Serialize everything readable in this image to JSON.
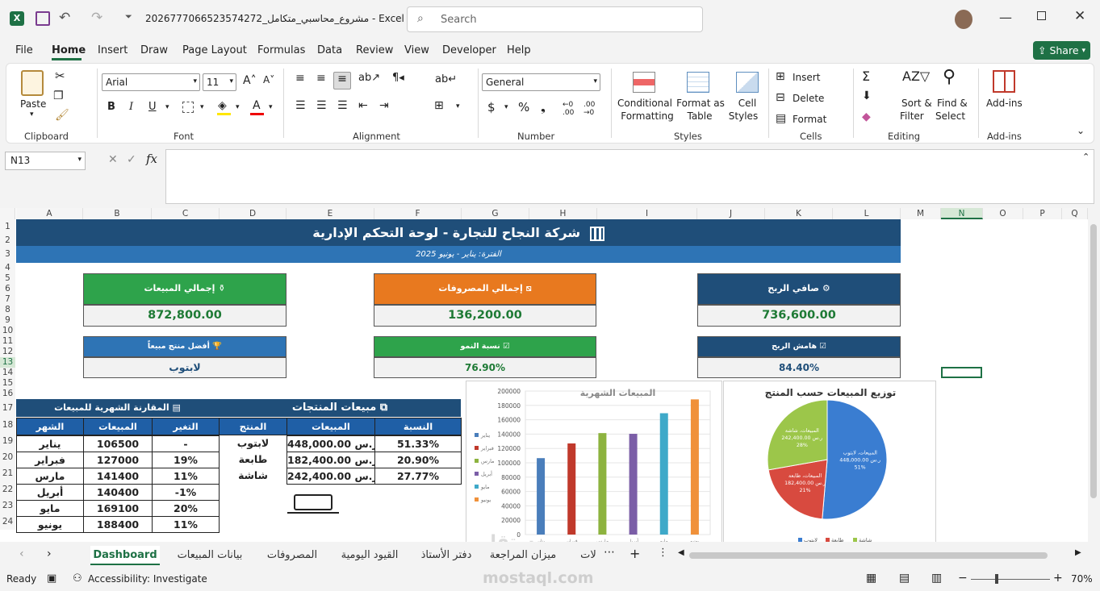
{
  "window": {
    "filename": "مشروع_محاسبي_متكامل_2026777066523574272  -  Excel",
    "search_placeholder": "Search"
  },
  "menu": [
    "File",
    "Home",
    "Insert",
    "Draw",
    "Page Layout",
    "Formulas",
    "Data",
    "Review",
    "View",
    "Developer",
    "Help"
  ],
  "share_label": "Share",
  "ribbon": {
    "clipboard": {
      "paste": "Paste",
      "label": "Clipboard"
    },
    "font": {
      "name": "Arial",
      "size": "11",
      "label": "Font"
    },
    "alignment": {
      "label": "Alignment"
    },
    "number": {
      "format": "General",
      "label": "Number"
    },
    "styles": {
      "conditional_1": "Conditional",
      "conditional_2": "Formatting",
      "format_table_1": "Format as",
      "format_table_2": "Table",
      "cell_styles_1": "Cell",
      "cell_styles_2": "Styles",
      "label": "Styles"
    },
    "cells": {
      "insert": "Insert",
      "delete": "Delete",
      "format": "Format",
      "label": "Cells"
    },
    "editing": {
      "sort_1": "Sort &",
      "sort_2": "Filter",
      "find_1": "Find &",
      "find_2": "Select",
      "label": "Editing"
    },
    "addins": {
      "button": "Add-ins",
      "label": "Add-ins"
    }
  },
  "formula_bar": {
    "name_box": "N13",
    "fx": "fx",
    "content": ""
  },
  "columns": [
    "A",
    "B",
    "C",
    "D",
    "E",
    "F",
    "G",
    "H",
    "I",
    "J",
    "K",
    "L",
    "M",
    "N",
    "O",
    "P",
    "Q"
  ],
  "rows": [
    "1",
    "2",
    "3",
    "4",
    "5",
    "6",
    "7",
    "8",
    "9",
    "10",
    "11",
    "12",
    "13",
    "14",
    "15",
    "16",
    "17",
    "18",
    "19",
    "20",
    "21",
    "22",
    "23",
    "24"
  ],
  "dashboard": {
    "title": "شركة النجاح للتجارة - لوحة التحكم الإدارية",
    "period": "الفترة: يناير - يونيو 2025",
    "kpis": [
      {
        "title": "إجمالي المبيعات",
        "value": "872,800.00",
        "color": "#2ea34b",
        "icon": "money-bag-icon"
      },
      {
        "title": "إجمالي المصروفات",
        "value": "136,200.00",
        "color": "#e8791f",
        "icon": "chart-down-icon"
      },
      {
        "title": "صافي الربح",
        "value": "736,600.00",
        "color": "#1f4e79",
        "icon": "gears-icon"
      }
    ],
    "kpis2": [
      {
        "title": "أفضل منتج مبيعاً",
        "value": "لابتوب",
        "color": "#2e74b5",
        "icon": "trophy-icon"
      },
      {
        "title": "نسبة النمو",
        "value": "76.90%",
        "color": "#2ea34b",
        "icon": "check-icon"
      },
      {
        "title": "هامش الربح",
        "value": "84.40%",
        "color": "#1f4e79",
        "icon": "check-icon"
      }
    ],
    "monthly_title": "المقارنة الشهرية للمبيعات",
    "monthly_headers": [
      "الشهر",
      "المبيعات",
      "التغير"
    ],
    "monthly_rows": [
      [
        "يناير",
        "106500",
        "-"
      ],
      [
        "فبراير",
        "127000",
        "19%"
      ],
      [
        "مارس",
        "141400",
        "11%"
      ],
      [
        "أبريل",
        "140400",
        "-1%"
      ],
      [
        "مايو",
        "169100",
        "20%"
      ],
      [
        "يونيو",
        "188400",
        "11%"
      ]
    ],
    "products_title": "مبيعات المنتجات",
    "products_headers": [
      "المنتج",
      "المبيعات",
      "النسبة"
    ],
    "products_rows": [
      [
        "لابتوب",
        "448,000.00 ر.س",
        "51.33%"
      ],
      [
        "طابعة",
        "182,400.00 ر.س",
        "20.90%"
      ],
      [
        "شاشة",
        "242,400.00 ر.س",
        "27.77%"
      ]
    ]
  },
  "chart_data": [
    {
      "type": "bar",
      "title": "المبيعات الشهرية",
      "categories": [
        "يناير",
        "فبراير",
        "مارس",
        "أبريل",
        "مايو",
        "يونيو"
      ],
      "values": [
        106500,
        127000,
        141400,
        140400,
        169100,
        188400
      ],
      "colors": [
        "#4a7ebb",
        "#c0392b",
        "#8db33f",
        "#7b5ea7",
        "#3fa9c9",
        "#f0913a"
      ],
      "ylim": [
        0,
        200000
      ],
      "yticks": [
        "200000",
        "180000",
        "160000",
        "140000",
        "120000",
        "100000",
        "80000",
        "60000",
        "40000",
        "20000",
        "0"
      ],
      "legend": "left"
    },
    {
      "type": "pie",
      "title": "توزيع المبيعات حسب المنتج",
      "slices": [
        {
          "name": "لابتوب",
          "value": 448000,
          "label": "المبيعات، لابتوب، 448,000.00 ر.س، 51%",
          "color": "#3a7dd1"
        },
        {
          "name": "طابعة",
          "value": 182400,
          "label": "المبيعات، طابعة، 182,400.00 ر.س، 21%",
          "color": "#d84a3f"
        },
        {
          "name": "شاشة",
          "value": 242400,
          "label": "المبيعات، شاشة، 242,400.00 ر.س، 28%",
          "color": "#9cc64a"
        }
      ],
      "legend": "bottom"
    }
  ],
  "sheet_tabs": [
    "Dashboard",
    "بيانات المبيعات",
    "المصروفات",
    "القيود اليومية",
    "دفتر الأستاذ",
    "ميزان المراجعة",
    "لات"
  ],
  "status": {
    "ready": "Ready",
    "accessibility": "Accessibility: Investigate",
    "zoom": "70%"
  },
  "watermark": "mostaql.com"
}
